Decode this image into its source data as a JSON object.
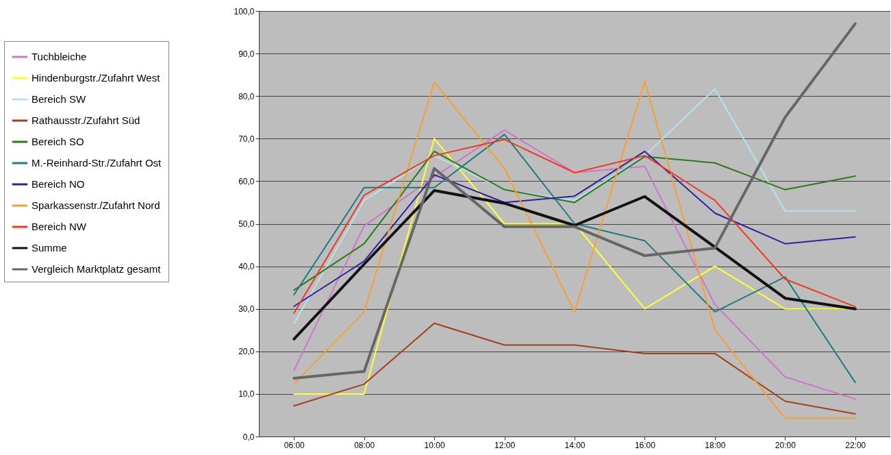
{
  "chart_data": {
    "type": "line",
    "categories": [
      "06:00",
      "08:00",
      "10:00",
      "12:00",
      "14:00",
      "16:00",
      "18:00",
      "20:00",
      "22:00"
    ],
    "series": [
      {
        "name": "Tuchbleiche",
        "color": "#cc77cc",
        "values": [
          15.5,
          49.5,
          61,
          72,
          62,
          63.5,
          31,
          14,
          8.8
        ]
      },
      {
        "name": "Hindenburgstr./Zufahrt West",
        "color": "#ffff33",
        "values": [
          10,
          10,
          70,
          50,
          50,
          30,
          40,
          30,
          30
        ]
      },
      {
        "name": "Bereich SW",
        "color": "#b0e4f0",
        "values": [
          26.5,
          55.5,
          66,
          58,
          55.5,
          66,
          81.7,
          53,
          53
        ]
      },
      {
        "name": "Rathausstr./Zufahrt Süd",
        "color": "#a0401c",
        "values": [
          7.2,
          12.3,
          26.6,
          21.5,
          21.5,
          19.5,
          19.5,
          8.3,
          5.3
        ]
      },
      {
        "name": "Bereich SO",
        "color": "#2a7a1a",
        "values": [
          34.4,
          45.3,
          67,
          58,
          55,
          65.8,
          64.3,
          58,
          61.2
        ]
      },
      {
        "name": "M.-Reinhard-Str./Zufahrt Ost",
        "color": "#1f7a80",
        "values": [
          33.3,
          58.5,
          58.5,
          71,
          50,
          46,
          29.3,
          37.5,
          12.7
        ]
      },
      {
        "name": "Bereich NO",
        "color": "#3020a0",
        "values": [
          30.6,
          41.2,
          61.5,
          55,
          56.5,
          67,
          52.5,
          45.3,
          46.9
        ]
      },
      {
        "name": "Sparkassenstr./Zufahrt Nord",
        "color": "#f5a030",
        "values": [
          12.3,
          29.3,
          83.3,
          63,
          29.3,
          83.5,
          25,
          4.3,
          4.3
        ]
      },
      {
        "name": "Bereich NW",
        "color": "#f03a20",
        "values": [
          29,
          56.7,
          66,
          69.8,
          62,
          66,
          55.5,
          37,
          30.5
        ]
      },
      {
        "name": "Summe",
        "color": "#111111",
        "values": [
          22.9,
          40.5,
          57.8,
          54.8,
          49.6,
          56.4,
          44.5,
          32.5,
          30
        ]
      },
      {
        "name": "Vergleich Marktplatz gesamt",
        "color": "#666666",
        "values": [
          13.7,
          15.3,
          63,
          49.3,
          49.3,
          42.5,
          44.3,
          75,
          97
        ]
      }
    ],
    "ylim": [
      0,
      100
    ],
    "yticks": [
      {
        "value": 0,
        "label": "0,0"
      },
      {
        "value": 10,
        "label": "10,0"
      },
      {
        "value": 20,
        "label": "20,0"
      },
      {
        "value": 30,
        "label": "30,0"
      },
      {
        "value": 40,
        "label": "40,0"
      },
      {
        "value": 50,
        "label": "50,0"
      },
      {
        "value": 60,
        "label": "60,0"
      },
      {
        "value": 70,
        "label": "70,0"
      },
      {
        "value": 80,
        "label": "80,0"
      },
      {
        "value": 90,
        "label": "90,0"
      },
      {
        "value": 100,
        "label": "100,0"
      }
    ],
    "grid": "y",
    "legend": "left"
  }
}
